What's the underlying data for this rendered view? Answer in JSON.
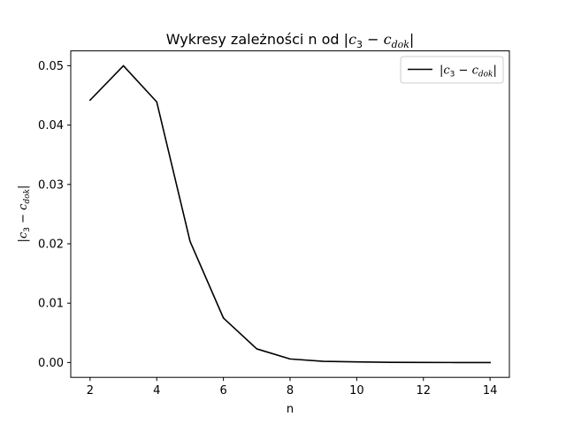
{
  "chart_data": {
    "type": "line",
    "title": {
      "prefix": "Wykresy zależności n od ",
      "bar_left": "|",
      "c": "c",
      "sub3": "3",
      "minus": " − ",
      "sub_dok": "dok",
      "bar_right": "|"
    },
    "xlabel": "n",
    "ylabel": {
      "bar_left": "|",
      "c": "c",
      "sub3": "3",
      "minus": " − ",
      "sub_dok": "dok",
      "bar_right": "|"
    },
    "xlim": [
      1.42,
      14.58
    ],
    "ylim": [
      -0.0025,
      0.0525
    ],
    "xticks": [
      2,
      4,
      6,
      8,
      10,
      12,
      14
    ],
    "xtick_labels": [
      "2",
      "4",
      "6",
      "8",
      "10",
      "12",
      "14"
    ],
    "yticks": [
      0.0,
      0.01,
      0.02,
      0.03,
      0.04,
      0.05
    ],
    "ytick_labels": [
      "0.00",
      "0.01",
      "0.02",
      "0.03",
      "0.04",
      "0.05"
    ],
    "grid": false,
    "legend_position": "top-right",
    "series": [
      {
        "name": {
          "bar_left": "|",
          "c": "c",
          "sub3": "3",
          "minus": " − ",
          "sub_dok": "dok",
          "bar_right": "|"
        },
        "color": "#000000",
        "x": [
          2,
          3,
          4,
          5,
          6,
          7,
          8,
          9,
          10,
          11,
          12,
          13,
          14
        ],
        "y": [
          0.0442,
          0.05,
          0.0439,
          0.0204,
          0.0075,
          0.0023,
          0.0006,
          0.0002,
          0.0001,
          3e-05,
          1e-05,
          0.0,
          0.0
        ]
      }
    ]
  }
}
